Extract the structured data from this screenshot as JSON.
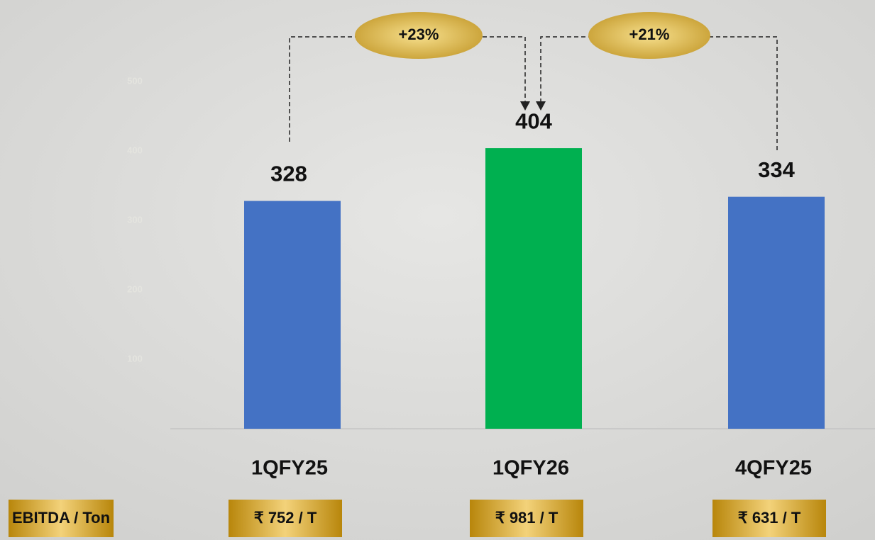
{
  "chart_data": {
    "type": "bar",
    "categories": [
      "1QFY25",
      "1QFY26",
      "4QFY25"
    ],
    "values": [
      328,
      404,
      334
    ],
    "colors": [
      "#4472c4",
      "#00b050",
      "#4472c4"
    ],
    "ylim": [
      0,
      500
    ],
    "yticks": [
      100,
      200,
      300,
      400,
      500
    ],
    "annotations": [
      "+23%",
      "+21%"
    ],
    "row_label": "EBITDA / Ton",
    "row_values": [
      "₹ 752 / T",
      "₹ 981 / T",
      "₹ 631 / T"
    ]
  }
}
